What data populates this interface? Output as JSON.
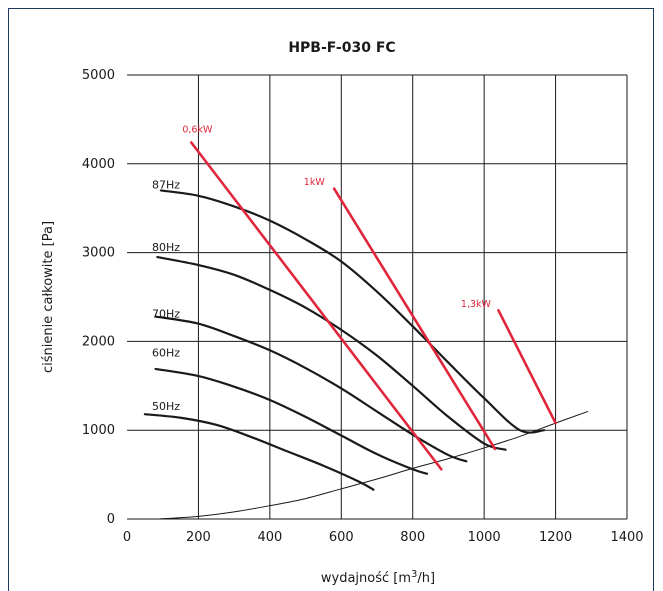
{
  "chart_data": {
    "type": "line",
    "title": "HPB-F-030 FC",
    "xlabel": "wydajność [m³/h]",
    "xlabel_parts": {
      "main": "wydajność [m",
      "sup": "3",
      "tail": "/h]"
    },
    "ylabel": "ciśnienie całkowite [Pa]",
    "xlim": [
      0,
      1400
    ],
    "ylim": [
      0,
      5000
    ],
    "x_ticks": [
      0,
      200,
      400,
      600,
      800,
      1000,
      1200,
      1400
    ],
    "y_ticks": [
      0,
      1000,
      2000,
      3000,
      4000,
      5000
    ],
    "x_tick_labels": [
      "0",
      "200",
      "400",
      "600",
      "800",
      "1000",
      "1200",
      "1400"
    ],
    "y_tick_labels": [
      "0",
      "1000",
      "2000",
      "3000",
      "4000",
      "5000"
    ],
    "grid": true,
    "series": [
      {
        "name": "87Hz",
        "kind": "fan",
        "color": "#1a1a1a",
        "points": [
          [
            95,
            3700
          ],
          [
            200,
            3640
          ],
          [
            300,
            3520
          ],
          [
            400,
            3360
          ],
          [
            500,
            3150
          ],
          [
            600,
            2900
          ],
          [
            700,
            2560
          ],
          [
            800,
            2170
          ],
          [
            900,
            1760
          ],
          [
            1000,
            1360
          ],
          [
            1100,
            1000
          ],
          [
            1168,
            1000
          ]
        ]
      },
      {
        "name": "80Hz",
        "kind": "fan",
        "color": "#1a1a1a",
        "points": [
          [
            85,
            2950
          ],
          [
            200,
            2860
          ],
          [
            300,
            2750
          ],
          [
            400,
            2580
          ],
          [
            500,
            2380
          ],
          [
            600,
            2130
          ],
          [
            700,
            1840
          ],
          [
            800,
            1500
          ],
          [
            900,
            1150
          ],
          [
            1000,
            850
          ],
          [
            1060,
            780
          ]
        ]
      },
      {
        "name": "70Hz",
        "kind": "fan",
        "color": "#1a1a1a",
        "points": [
          [
            80,
            2280
          ],
          [
            200,
            2200
          ],
          [
            300,
            2060
          ],
          [
            400,
            1900
          ],
          [
            500,
            1700
          ],
          [
            600,
            1470
          ],
          [
            700,
            1210
          ],
          [
            800,
            950
          ],
          [
            900,
            720
          ],
          [
            950,
            650
          ]
        ]
      },
      {
        "name": "60Hz",
        "kind": "fan",
        "color": "#1a1a1a",
        "points": [
          [
            80,
            1690
          ],
          [
            200,
            1610
          ],
          [
            300,
            1490
          ],
          [
            400,
            1340
          ],
          [
            500,
            1150
          ],
          [
            600,
            940
          ],
          [
            700,
            730
          ],
          [
            800,
            560
          ],
          [
            840,
            510
          ]
        ]
      },
      {
        "name": "50Hz",
        "kind": "fan",
        "color": "#1a1a1a",
        "points": [
          [
            50,
            1180
          ],
          [
            150,
            1140
          ],
          [
            250,
            1060
          ],
          [
            350,
            920
          ],
          [
            450,
            760
          ],
          [
            550,
            600
          ],
          [
            650,
            420
          ],
          [
            690,
            330
          ]
        ]
      },
      {
        "name": "",
        "kind": "system",
        "color": "#1a1a1a",
        "points": [
          [
            90,
            0
          ],
          [
            200,
            30
          ],
          [
            300,
            80
          ],
          [
            400,
            150
          ],
          [
            500,
            230
          ],
          [
            600,
            340
          ],
          [
            700,
            450
          ],
          [
            800,
            570
          ],
          [
            900,
            680
          ],
          [
            1000,
            800
          ],
          [
            1100,
            930
          ],
          [
            1200,
            1080
          ],
          [
            1290,
            1210
          ]
        ]
      },
      {
        "name": "0,6kW",
        "kind": "power",
        "color": "#e0263b",
        "points": [
          [
            180,
            4240
          ],
          [
            880,
            560
          ]
        ]
      },
      {
        "name": "1kW",
        "kind": "power",
        "color": "#e0263b",
        "points": [
          [
            580,
            3720
          ],
          [
            1030,
            790
          ]
        ]
      },
      {
        "name": "1,3kW",
        "kind": "power",
        "color": "#e0263b",
        "points": [
          [
            1040,
            2350
          ],
          [
            1200,
            1080
          ]
        ]
      }
    ],
    "annotations": [
      {
        "text": "87Hz",
        "x": 70,
        "y": 3720,
        "color": "#1a1a1a"
      },
      {
        "text": "80Hz",
        "x": 70,
        "y": 3020,
        "color": "#1a1a1a"
      },
      {
        "text": "70Hz",
        "x": 70,
        "y": 2270,
        "color": "#1a1a1a"
      },
      {
        "text": "60Hz",
        "x": 70,
        "y": 1830,
        "color": "#1a1a1a"
      },
      {
        "text": "50Hz",
        "x": 70,
        "y": 1230,
        "color": "#1a1a1a"
      },
      {
        "text": "0,6kW",
        "x": 155,
        "y": 4350,
        "color": "#e0263b"
      },
      {
        "text": "1kW",
        "x": 495,
        "y": 3760,
        "color": "#e0263b"
      },
      {
        "text": "1,3kW",
        "x": 935,
        "y": 2390,
        "color": "#e0263b"
      }
    ]
  }
}
